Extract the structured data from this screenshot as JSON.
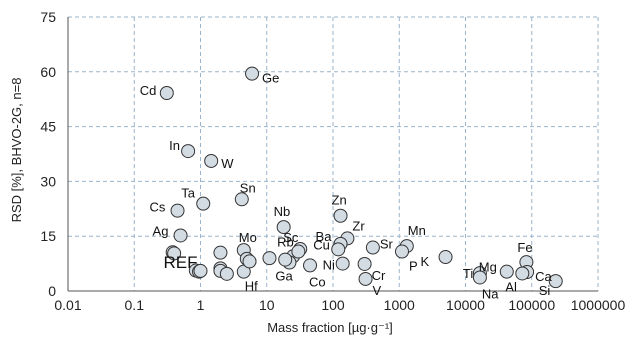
{
  "chart_data": {
    "type": "scatter",
    "xscale": "log",
    "xlim": [
      0.01,
      1000000
    ],
    "ylim": [
      0,
      75
    ],
    "xticks": [
      "0.01",
      "0.1",
      "1",
      "10",
      "100",
      "1000",
      "10000",
      "100000",
      "1000000"
    ],
    "yticks": [
      "0",
      "15",
      "30",
      "45",
      "60",
      "75"
    ],
    "xlabel": "Mass fraction [µg·g⁻¹]",
    "ylabel": "RSD [%], BHVO-2G, n=8",
    "grid": true,
    "marker_fill": "#d3dbe3",
    "marker_edge": "#333333",
    "grid_color": "#9ab4cc",
    "points": [
      {
        "label": "Cd",
        "x": 0.31,
        "y": 54.2
      },
      {
        "label": "Ge",
        "x": 6.0,
        "y": 59.5
      },
      {
        "label": "In",
        "x": 0.65,
        "y": 38.3
      },
      {
        "label": "W",
        "x": 1.45,
        "y": 35.6
      },
      {
        "label": "Ta",
        "x": 1.1,
        "y": 23.9
      },
      {
        "label": "Cs",
        "x": 0.45,
        "y": 22.0
      },
      {
        "label": "Sn",
        "x": 4.2,
        "y": 25.1
      },
      {
        "label": "Ag",
        "x": 0.5,
        "y": 15.2
      },
      {
        "label": "Nb",
        "x": 18,
        "y": 17.5
      },
      {
        "label": "Zn",
        "x": 130,
        "y": 20.6
      },
      {
        "label": "Zr",
        "x": 165,
        "y": 14.4
      },
      {
        "label": "Ba",
        "x": 130,
        "y": 12.9
      },
      {
        "label": "Cu",
        "x": 120,
        "y": 11.4
      },
      {
        "label": "Ni",
        "x": 140,
        "y": 7.5
      },
      {
        "label": "Sc",
        "x": 32,
        "y": 11.5
      },
      {
        "label": "Rb",
        "x": 25,
        "y": 9.5
      },
      {
        "label": "Mo",
        "x": 4.5,
        "y": 11.2
      },
      {
        "label": "Ga",
        "x": 22,
        "y": 7.8
      },
      {
        "label": "Co",
        "x": 45,
        "y": 7.0
      },
      {
        "label": "Hf",
        "x": 4.5,
        "y": 5.3
      },
      {
        "label": "Sr",
        "x": 400,
        "y": 11.9
      },
      {
        "label": "Mn",
        "x": 1300,
        "y": 12.3
      },
      {
        "label": "P",
        "x": 1100,
        "y": 10.8
      },
      {
        "label": "K",
        "x": 5000,
        "y": 9.3
      },
      {
        "label": "Cr",
        "x": 300,
        "y": 7.4
      },
      {
        "label": "V",
        "x": 310,
        "y": 3.3
      },
      {
        "label": "Ti",
        "x": 16500,
        "y": 4.9
      },
      {
        "label": "Na",
        "x": 16500,
        "y": 3.7
      },
      {
        "label": "Mg",
        "x": 42000,
        "y": 5.3
      },
      {
        "label": "Fe",
        "x": 83000,
        "y": 7.9
      },
      {
        "label": "Ca",
        "x": 85000,
        "y": 5.2
      },
      {
        "label": "Al",
        "x": 72000,
        "y": 4.8
      },
      {
        "label": "Si",
        "x": 230000,
        "y": 2.7
      },
      {
        "label": "",
        "x": 0.38,
        "y": 10.6
      },
      {
        "label": "",
        "x": 0.4,
        "y": 10.3
      },
      {
        "label": "",
        "x": 0.85,
        "y": 5.6
      },
      {
        "label": "",
        "x": 0.95,
        "y": 5.3
      },
      {
        "label": "",
        "x": 1.0,
        "y": 5.5
      },
      {
        "label": "",
        "x": 2.0,
        "y": 10.5
      },
      {
        "label": "",
        "x": 2.0,
        "y": 6.2
      },
      {
        "label": "",
        "x": 2.0,
        "y": 5.5
      },
      {
        "label": "",
        "x": 2.5,
        "y": 4.7
      },
      {
        "label": "",
        "x": 5.0,
        "y": 8.8
      },
      {
        "label": "",
        "x": 5.5,
        "y": 8.1
      },
      {
        "label": "",
        "x": 11,
        "y": 9.0
      },
      {
        "label": "",
        "x": 19,
        "y": 8.6
      },
      {
        "label": "",
        "x": 30,
        "y": 10.8
      }
    ],
    "annotations": [
      {
        "text": "REF",
        "x": 0.42,
        "y": 8.5
      }
    ]
  }
}
